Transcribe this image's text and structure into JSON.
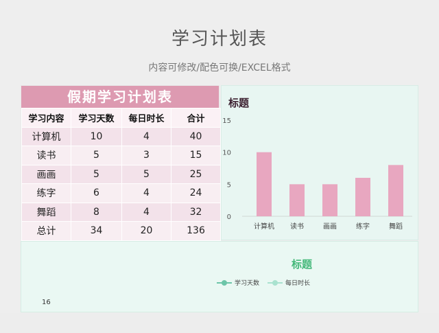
{
  "page": {
    "title": "学习计划表",
    "subtitle": "内容可修改/配色可换/EXCEL格式"
  },
  "sheet": {
    "title": "假期学习计划表",
    "headers": [
      "学习内容",
      "学习天数",
      "每日时长",
      "合计"
    ],
    "rows": [
      [
        "计算机",
        "10",
        "4",
        "40"
      ],
      [
        "读书",
        "5",
        "3",
        "15"
      ],
      [
        "画画",
        "5",
        "5",
        "25"
      ],
      [
        "练字",
        "6",
        "4",
        "24"
      ],
      [
        "舞蹈",
        "8",
        "4",
        "32"
      ],
      [
        "总计",
        "34",
        "20",
        "136"
      ]
    ]
  },
  "chart_data": [
    {
      "type": "bar",
      "title": "标题",
      "categories": [
        "计算机",
        "读书",
        "画画",
        "练字",
        "舞蹈"
      ],
      "values": [
        10,
        5,
        5,
        6,
        8
      ],
      "yticks": [
        "0",
        "5",
        "10",
        "15"
      ],
      "ylim": [
        0,
        15
      ],
      "color": "#e8a7c0",
      "grid": false
    },
    {
      "type": "line",
      "title": "标题",
      "series": [
        {
          "name": "学习天数",
          "color": "#6cc5a8"
        },
        {
          "name": "每日时长",
          "color": "#a9e2cf"
        }
      ],
      "yticks_visible": [
        "16"
      ],
      "legend": "top"
    }
  ]
}
